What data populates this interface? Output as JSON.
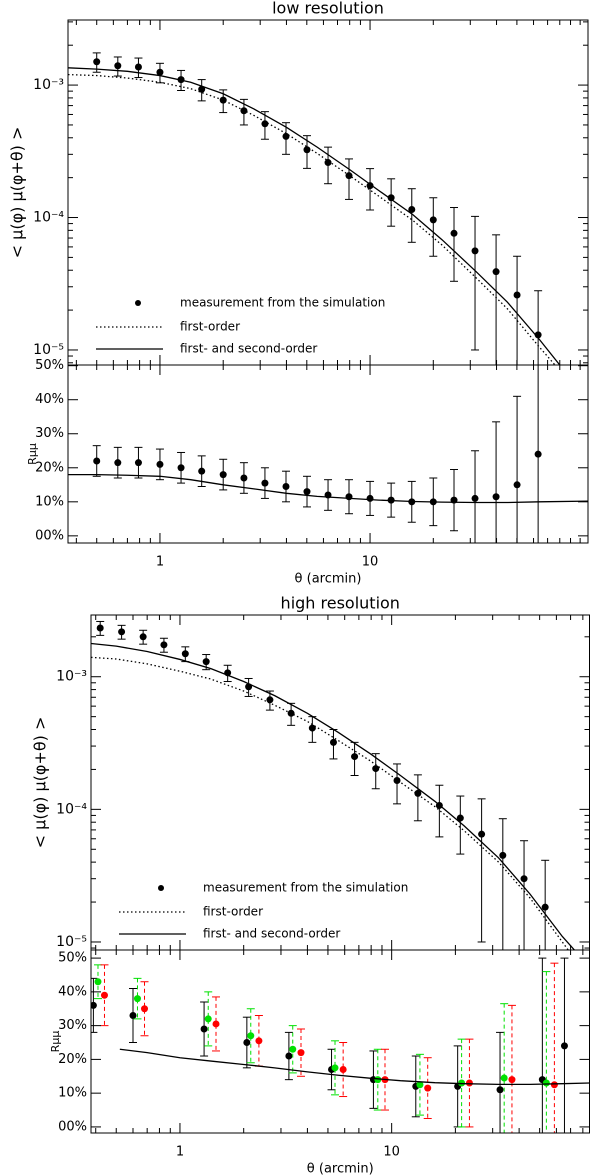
{
  "chart_data": [
    {
      "type": "errorbar",
      "title": "low resolution",
      "ylabel": "< μ(φ) μ(φ+θ) >",
      "log_x": true,
      "log_y": true,
      "xlim": [
        0.365,
        109
      ],
      "xticks": [
        1,
        10
      ],
      "xtick_labels": false,
      "xminorticks": [
        0.4,
        0.5,
        0.6,
        0.7,
        0.8,
        0.9,
        2,
        3,
        4,
        5,
        6,
        7,
        8,
        9,
        20,
        30,
        40,
        50,
        60,
        70,
        80,
        90,
        100
      ],
      "ylim": [
        7.7e-06,
        0.0031
      ],
      "yticks": [
        {
          "value": 1e-05,
          "label": "10⁻⁵"
        },
        {
          "value": 0.0001,
          "label": "10⁻⁴"
        },
        {
          "value": 0.001,
          "label": "10⁻³"
        }
      ],
      "yminorticks": [
        8e-06,
        9e-06,
        2e-05,
        3e-05,
        4e-05,
        5e-05,
        6e-05,
        7e-05,
        8e-05,
        9e-05,
        0.0002,
        0.0003,
        0.0004,
        0.0005,
        0.0006,
        0.0007,
        0.0008,
        0.0009,
        0.002,
        0.003
      ],
      "legend": "lower left",
      "series": [
        {
          "name": "measurement from the simulation",
          "style": "points",
          "color": "#000000",
          "x": [
            0.5,
            0.63,
            0.79,
            1.0,
            1.26,
            1.58,
            2.0,
            2.51,
            3.16,
            3.98,
            5.01,
            6.31,
            7.94,
            10.0,
            12.6,
            15.8,
            20.0,
            25.1,
            31.6,
            39.8,
            50.1,
            63.1
          ],
          "values": [
            0.0015,
            0.0014,
            0.00137,
            0.00125,
            0.0011,
            0.00093,
            0.00077,
            0.00064,
            0.00051,
            0.00041,
            0.000325,
            0.00026,
            0.000207,
            0.000174,
            0.000141,
            0.000115,
            9.6e-05,
            7.6e-05,
            5.6e-05,
            3.9e-05,
            2.6e-05,
            1.3e-05
          ],
          "errors": [
            0.00025,
            0.00023,
            0.00023,
            0.00021,
            0.00019,
            0.00017,
            0.00015,
            0.00014,
            0.00012,
            0.00011,
            9e-05,
            8e-05,
            7e-05,
            6e-05,
            5.5e-05,
            5e-05,
            4.5e-05,
            4.3e-05,
            4.6e-05,
            3.5e-05,
            2.5e-05,
            1.5e-05
          ]
        },
        {
          "name": "first-order",
          "style": "dotted",
          "color": "#000000",
          "x": [
            0.365,
            0.5,
            0.7,
            1,
            1.4,
            2,
            2.8,
            4,
            5.6,
            8,
            11,
            16,
            22,
            32,
            45,
            64,
            80
          ],
          "values": [
            0.0012,
            0.00118,
            0.00113,
            0.00105,
            0.00094,
            0.00077,
            0.00059,
            0.00043,
            0.000305,
            0.000207,
            0.000145,
            9.5e-05,
            6.2e-05,
            3.5e-05,
            2.05e-05,
            1.05e-05,
            7e-06
          ]
        },
        {
          "name": "first- and second-order",
          "style": "solid",
          "color": "#000000",
          "x": [
            0.365,
            0.5,
            0.7,
            1,
            1.4,
            2,
            2.8,
            4,
            5.6,
            8,
            11,
            16,
            22,
            32,
            45,
            64,
            80
          ],
          "values": [
            0.00135,
            0.00132,
            0.00127,
            0.00118,
            0.00105,
            0.00086,
            0.00066,
            0.00048,
            0.00034,
            0.00023,
            0.00016,
            0.000105,
            6.8e-05,
            3.9e-05,
            2.3e-05,
            1.2e-05,
            7.7e-06
          ]
        }
      ]
    },
    {
      "type": "errorbar",
      "xlabel": "θ (arcmin)",
      "ylabel": "Rμμ",
      "log_x": true,
      "log_y": false,
      "xlim": [
        0.365,
        109
      ],
      "xticks": [
        1,
        10
      ],
      "xtick_labels": true,
      "xminorticks": [
        0.4,
        0.5,
        0.6,
        0.7,
        0.8,
        0.9,
        2,
        3,
        4,
        5,
        6,
        7,
        8,
        9,
        20,
        30,
        40,
        50,
        60,
        70,
        80,
        90,
        100
      ],
      "ylim": [
        -2.1,
        50.2
      ],
      "yticks": [
        {
          "value": 0,
          "label": "00%"
        },
        {
          "value": 10,
          "label": "10%"
        },
        {
          "value": 20,
          "label": "20%"
        },
        {
          "value": 30,
          "label": "30%"
        },
        {
          "value": 40,
          "label": "40%"
        },
        {
          "value": 50,
          "label": "50%"
        }
      ],
      "series": [
        {
          "style": "points",
          "color": "#000000",
          "x": [
            0.5,
            0.63,
            0.79,
            1.0,
            1.26,
            1.58,
            2.0,
            2.51,
            3.16,
            3.98,
            5.01,
            6.31,
            7.94,
            10.0,
            12.6,
            15.8,
            20.0,
            25.1,
            31.6,
            39.8,
            50.1,
            63.1
          ],
          "values": [
            22,
            21.5,
            21.5,
            21,
            20,
            19,
            18,
            17,
            15.5,
            14.5,
            13,
            12,
            11.5,
            11,
            10.5,
            10,
            10,
            10.5,
            11,
            11.5,
            15,
            24
          ],
          "errors": [
            4.5,
            4.5,
            4.5,
            4.5,
            4.5,
            4.5,
            4.5,
            4.5,
            4.5,
            4.5,
            4.5,
            4.5,
            5,
            5,
            5,
            6,
            7,
            9,
            14,
            22,
            26,
            40
          ]
        },
        {
          "style": "solid",
          "color": "#000000",
          "x": [
            0.365,
            0.5,
            0.7,
            1,
            1.4,
            2,
            2.8,
            4,
            5.6,
            8,
            11,
            16,
            22,
            32,
            45,
            64,
            109
          ],
          "values": [
            18,
            18,
            17.8,
            17.5,
            16.5,
            15,
            13.8,
            12.5,
            11.6,
            11,
            10.5,
            10.1,
            9.9,
            9.8,
            9.8,
            10,
            10.2
          ]
        }
      ]
    },
    {
      "type": "errorbar",
      "title": "high resolution",
      "ylabel": "< μ(φ) μ(φ+θ) >",
      "log_x": true,
      "log_y": true,
      "xlim": [
        0.38,
        86
      ],
      "xticks": [
        1,
        10
      ],
      "xtick_labels": false,
      "xminorticks": [
        0.4,
        0.5,
        0.6,
        0.7,
        0.8,
        0.9,
        2,
        3,
        4,
        5,
        6,
        7,
        8,
        9,
        20,
        30,
        40,
        50,
        60,
        70,
        80
      ],
      "ylim": [
        8.7e-06,
        0.00292
      ],
      "yticks": [
        {
          "value": 1e-05,
          "label": "10⁻⁵"
        },
        {
          "value": 0.0001,
          "label": "10⁻⁴"
        },
        {
          "value": 0.001,
          "label": "10⁻³"
        }
      ],
      "yminorticks": [
        9e-06,
        2e-05,
        3e-05,
        4e-05,
        5e-05,
        6e-05,
        7e-05,
        8e-05,
        9e-05,
        0.0002,
        0.0003,
        0.0004,
        0.0005,
        0.0006,
        0.0007,
        0.0008,
        0.0009,
        0.002
      ],
      "legend": "lower left",
      "series": [
        {
          "name": "measurement from the simulation",
          "style": "points",
          "color": "#000000",
          "x": [
            0.42,
            0.53,
            0.67,
            0.84,
            1.06,
            1.33,
            1.68,
            2.11,
            2.66,
            3.35,
            4.22,
            5.31,
            6.68,
            8.41,
            10.6,
            13.3,
            16.8,
            21.1,
            26.6,
            33.5,
            42.2,
            53.1
          ],
          "values": [
            0.00233,
            0.00218,
            0.002,
            0.00174,
            0.00149,
            0.0013,
            0.00107,
            0.00084,
            0.00067,
            0.00053,
            0.00041,
            0.00032,
            0.00025,
            0.000203,
            0.000165,
            0.000132,
            0.000107,
            8.6e-05,
            6.5e-05,
            4.5e-05,
            3e-05,
            1.83e-05
          ],
          "errors": [
            0.00028,
            0.00026,
            0.00024,
            0.00021,
            0.00019,
            0.00017,
            0.00015,
            0.00013,
            0.00011,
            0.0001,
            9e-05,
            8e-05,
            7e-05,
            6e-05,
            5.5e-05,
            5e-05,
            4.5e-05,
            4e-05,
            5.5e-05,
            4e-05,
            2.8e-05,
            2.3e-05
          ]
        },
        {
          "name": "first-order",
          "style": "dotted",
          "color": "#000000",
          "x": [
            0.38,
            0.5,
            0.7,
            1,
            1.4,
            2,
            2.8,
            4,
            5.6,
            8,
            11,
            16,
            22,
            32,
            45,
            64,
            73
          ],
          "values": [
            0.0014,
            0.00136,
            0.00125,
            0.0011,
            0.00096,
            0.00078,
            0.00061,
            0.00046,
            0.00033,
            0.00023,
            0.00016,
            0.000105,
            6.9e-05,
            4e-05,
            2.15e-05,
            1e-05,
            7.5e-06
          ]
        },
        {
          "name": "first- and second-order",
          "style": "solid",
          "color": "#000000",
          "x": [
            0.38,
            0.5,
            0.7,
            1,
            1.4,
            2,
            2.8,
            4,
            5.6,
            8,
            11,
            16,
            22,
            32,
            45,
            64,
            73
          ],
          "values": [
            0.00178,
            0.0017,
            0.00155,
            0.00135,
            0.00115,
            0.00092,
            0.00072,
            0.00053,
            0.00038,
            0.00026,
            0.00018,
            0.000115,
            7.5e-05,
            4.3e-05,
            2.3e-05,
            1.1e-05,
            8.7e-06
          ]
        }
      ]
    },
    {
      "type": "errorbar",
      "xlabel": "θ (arcmin)",
      "ylabel": "Rμμ",
      "log_x": true,
      "log_y": false,
      "xlim": [
        0.38,
        86
      ],
      "xticks": [
        1,
        10
      ],
      "xtick_labels": true,
      "xminorticks": [
        0.4,
        0.5,
        0.6,
        0.7,
        0.8,
        0.9,
        2,
        3,
        4,
        5,
        6,
        7,
        8,
        9,
        20,
        30,
        40,
        50,
        60,
        70,
        80
      ],
      "ylim": [
        -1.8,
        52.4
      ],
      "yticks": [
        {
          "value": 0,
          "label": "00%"
        },
        {
          "value": 10,
          "label": "10%"
        },
        {
          "value": 20,
          "label": "20%"
        },
        {
          "value": 30,
          "label": "30%"
        },
        {
          "value": 40,
          "label": "40%"
        },
        {
          "value": 50,
          "label": "50%"
        }
      ],
      "series": [
        {
          "style": "points",
          "color": "#000000",
          "x": [
            0.39,
            0.6,
            1.3,
            2.07,
            3.27,
            5.2,
            8.2,
            13,
            20.5,
            32.5,
            51.5,
            65.5
          ],
          "values": [
            36,
            33,
            29,
            25,
            21,
            17,
            14,
            12,
            12,
            11,
            14,
            24
          ],
          "errors": [
            8,
            8,
            8,
            7.5,
            7,
            6,
            8.5,
            9,
            12,
            17,
            36,
            26
          ]
        },
        {
          "style": "points",
          "bar_style": "dashed",
          "color": "#00e000",
          "x": [
            0.41,
            0.63,
            1.36,
            2.16,
            3.41,
            5.4,
            8.6,
            13.6,
            21.4,
            34,
            53.8
          ],
          "values": [
            43,
            38,
            32,
            27,
            23,
            17.5,
            14,
            12.5,
            13,
            14.5,
            13
          ],
          "errors": [
            5,
            6,
            8,
            8,
            7,
            8,
            9,
            9,
            13,
            22,
            33
          ]
        },
        {
          "style": "points",
          "bar_style": "dashed",
          "color": "#ff0000",
          "x": [
            0.44,
            0.68,
            1.48,
            2.36,
            3.73,
            5.9,
            9.3,
            14.8,
            23.3,
            37,
            58.7
          ],
          "values": [
            39,
            35,
            30.5,
            25.5,
            22,
            17,
            14,
            11.5,
            13,
            14,
            12.5
          ],
          "errors": [
            9,
            8,
            8,
            7.5,
            7,
            8,
            9,
            9,
            13,
            22,
            36
          ]
        },
        {
          "style": "solid",
          "color": "#000000",
          "x": [
            0.52,
            0.7,
            1,
            1.4,
            2,
            2.8,
            4,
            5.6,
            8,
            11,
            16,
            22,
            32,
            45,
            64,
            86
          ],
          "values": [
            23,
            22,
            20.5,
            19.5,
            18.5,
            17.5,
            16.3,
            15.3,
            14.4,
            13.7,
            13.1,
            12.8,
            12.6,
            12.6,
            12.8,
            13.0
          ]
        }
      ]
    }
  ]
}
